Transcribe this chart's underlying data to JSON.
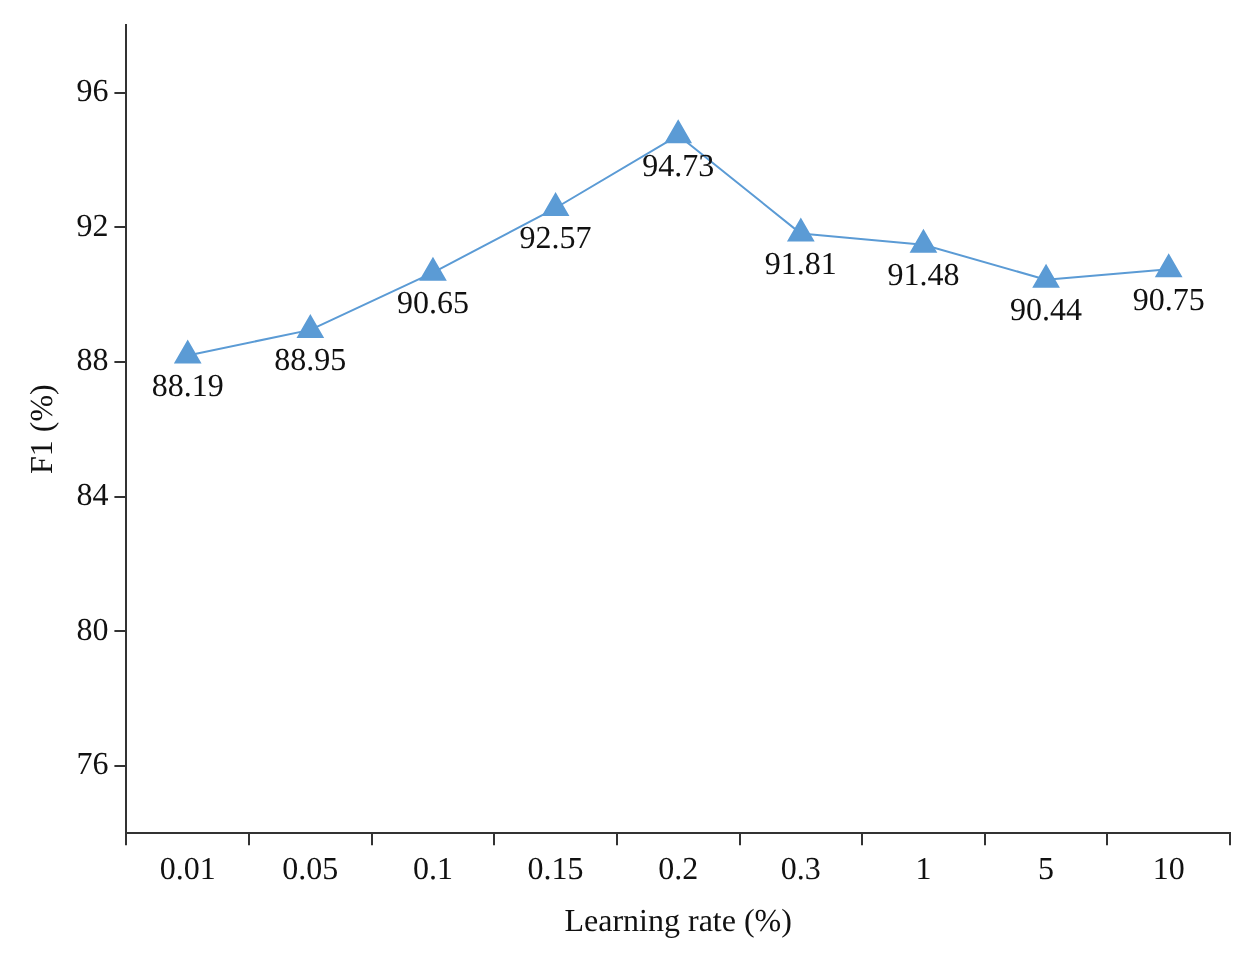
{
  "chart_data": {
    "type": "line",
    "xlabel": "Learning rate (%)",
    "ylabel": "F1 (%)",
    "categories": [
      "0.01",
      "0.05",
      "0.1",
      "0.15",
      "0.2",
      "0.3",
      "1",
      "5",
      "10"
    ],
    "series": [
      {
        "color": "#5b9bd5",
        "values": [
          88.19,
          88.95,
          90.65,
          92.57,
          94.73,
          91.81,
          91.48,
          90.44,
          90.75
        ]
      }
    ],
    "ylim": [
      74,
      98
    ],
    "yticks": [
      76,
      80,
      84,
      88,
      92,
      96
    ],
    "grid": false,
    "legend": false,
    "marker": "triangle",
    "line_style": "solid",
    "data_labels": true
  }
}
